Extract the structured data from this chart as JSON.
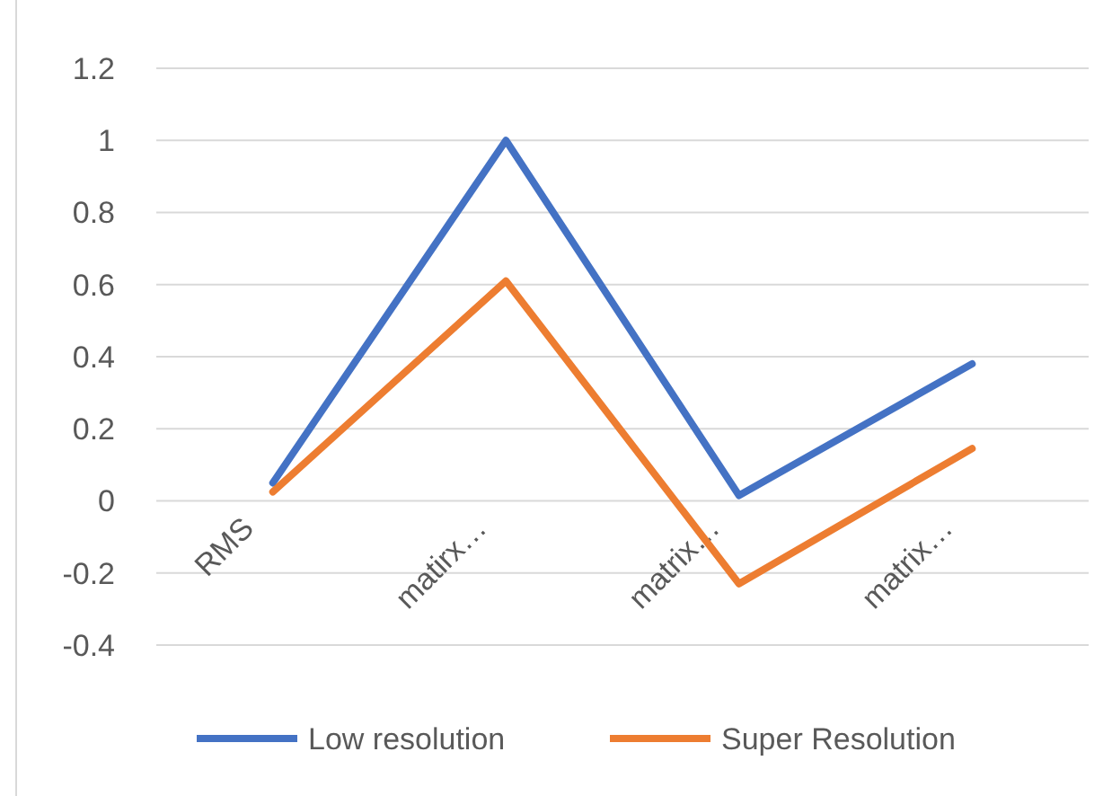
{
  "chart_data": {
    "type": "line",
    "categories": [
      "RMS",
      "matirx…",
      "matrix…",
      "matrix…"
    ],
    "series": [
      {
        "name": "Low resolution",
        "color": "#4472c4",
        "values": [
          0.05,
          1.0,
          0.015,
          0.38
        ]
      },
      {
        "name": "Super Resolution",
        "color": "#ed7d31",
        "values": [
          0.025,
          0.61,
          -0.23,
          0.145
        ]
      }
    ],
    "ylim": [
      -0.4,
      1.2
    ],
    "yticks": [
      -0.4,
      -0.2,
      0,
      0.2,
      0.4,
      0.6,
      0.8,
      1,
      1.2
    ],
    "grid": "y",
    "legend": "bottom",
    "marker": "none",
    "line_style": "solid"
  }
}
